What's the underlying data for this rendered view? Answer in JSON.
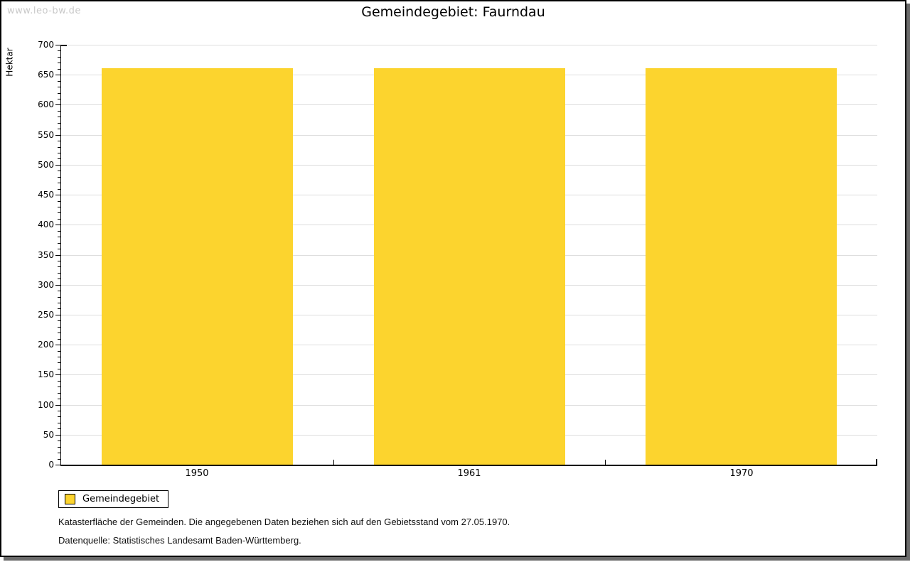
{
  "watermark": "www.leo-bw.de",
  "title": "Gemeindegebiet: Faurndau",
  "chart_data": {
    "type": "bar",
    "title": "Gemeindegebiet: Faurndau",
    "categories": [
      "1950",
      "1961",
      "1970"
    ],
    "series": [
      {
        "name": "Gemeindegebiet",
        "values": [
          661,
          661,
          661
        ]
      }
    ],
    "xlabel": "",
    "ylabel": "Hektar",
    "ylim": [
      0,
      700
    ],
    "y_major_step": 50,
    "y_minor_step": 10,
    "grid": true,
    "legend_position": "bottom-left",
    "bar_color": "#FCD42E"
  },
  "legend": {
    "items": [
      {
        "label": "Gemeindegebiet",
        "color": "#FCD42E"
      }
    ]
  },
  "notes": {
    "line1": "Katasterfläche der Gemeinden. Die angegebenen Daten beziehen sich auf den Gebietsstand vom 27.05.1970.",
    "line2": "Datenquelle: Statistisches Landesamt Baden-Württemberg."
  },
  "colors": {
    "bar": "#FCD42E",
    "grid": "#DDDDDD",
    "axis": "#000000",
    "watermark": "#C9C9C9",
    "frame_shadow": "#6B6B6B"
  }
}
